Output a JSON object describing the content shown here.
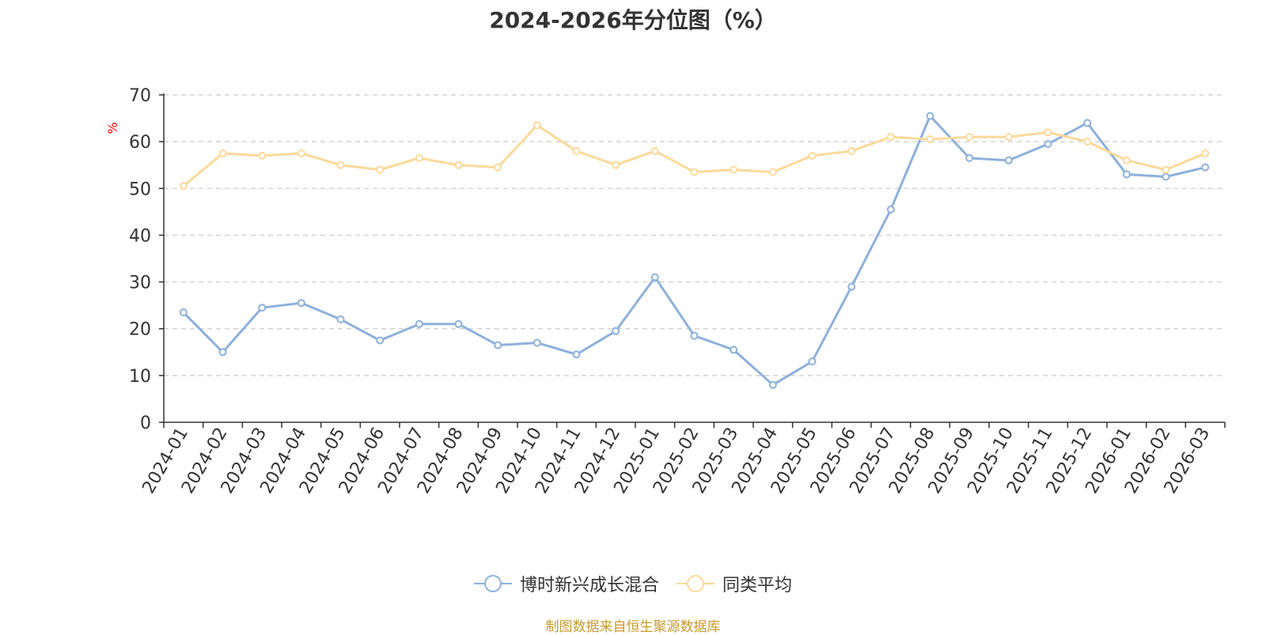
{
  "title": "2024-2026年分位图（%）",
  "source": "制图数据来自恒生聚源数据库",
  "chart_data": {
    "type": "line",
    "ylabel": "%",
    "ylim": [
      0,
      70
    ],
    "yticks": [
      0,
      10,
      20,
      30,
      40,
      50,
      60,
      70
    ],
    "grid": true,
    "legend_position": "bottom",
    "categories": [
      "2024-01",
      "2024-02",
      "2024-03",
      "2024-04",
      "2024-05",
      "2024-06",
      "2024-07",
      "2024-08",
      "2024-09",
      "2024-10",
      "2024-11",
      "2024-12",
      "2025-01",
      "2025-02",
      "2025-03",
      "2025-04",
      "2025-05",
      "2025-06",
      "2025-07",
      "2025-08",
      "2025-09",
      "2025-10",
      "2025-11",
      "2025-12",
      "2026-01",
      "2026-02",
      "2026-03"
    ],
    "series": [
      {
        "name": "博时新兴成长混合",
        "color": "#8eb0dc",
        "values": [
          23.5,
          15.0,
          24.5,
          25.5,
          22.0,
          17.5,
          21.0,
          21.0,
          16.5,
          17.0,
          14.5,
          19.5,
          31.0,
          18.5,
          15.5,
          8.0,
          13.0,
          29.0,
          45.5,
          65.5,
          56.5,
          56.0,
          59.5,
          64.0,
          53.0,
          52.5,
          54.5
        ]
      },
      {
        "name": "同类平均",
        "color": "#fbd99a",
        "values": [
          50.5,
          57.5,
          57.0,
          57.5,
          55.0,
          54.0,
          56.5,
          55.0,
          54.5,
          63.5,
          58.0,
          55.0,
          58.0,
          53.5,
          54.0,
          53.5,
          57.0,
          58.0,
          61.0,
          60.5,
          61.0,
          61.0,
          62.0,
          60.0,
          56.0,
          54.0,
          57.5
        ]
      }
    ]
  }
}
